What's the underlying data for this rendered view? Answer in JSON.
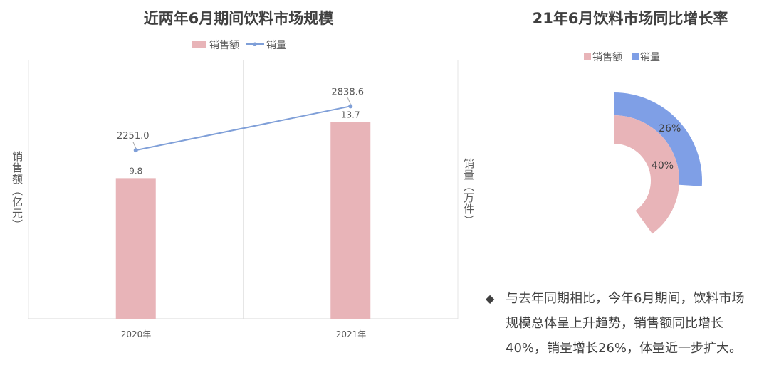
{
  "chart_data": [
    {
      "type": "bar",
      "title": "近两年6月期间饮料市场规模",
      "categories": [
        "2020年",
        "2021年"
      ],
      "series": [
        {
          "name": "销售额",
          "type": "bar",
          "axis": "left",
          "values": [
            9.8,
            13.7
          ],
          "color": "#E8B4B8"
        },
        {
          "name": "销量",
          "type": "line",
          "axis": "right",
          "values": [
            2251.0,
            2838.6
          ],
          "color": "#7F9FD8"
        }
      ],
      "ylabel": "销售额（亿元）",
      "y2label": "销量（万件）",
      "ylim": [
        0,
        18
      ],
      "y2lim": [
        0,
        3450
      ],
      "legend_position": "top",
      "grid": "vertical"
    },
    {
      "type": "pie",
      "title": "21年6月饮料市场同比增长率",
      "series": [
        {
          "name": "销售额",
          "value": 40,
          "label": "40%",
          "color": "#E8B4B8"
        },
        {
          "name": "销量",
          "value": 26,
          "label": "26%",
          "color": "#7F9FE6"
        }
      ],
      "legend_position": "top"
    }
  ],
  "note": {
    "bullet": "◆",
    "text": "与去年同期相比，今年6月期间，饮料市场规模总体呈上升趋势，销售额同比增长40%，销量增长26%，体量近一步扩大。"
  }
}
